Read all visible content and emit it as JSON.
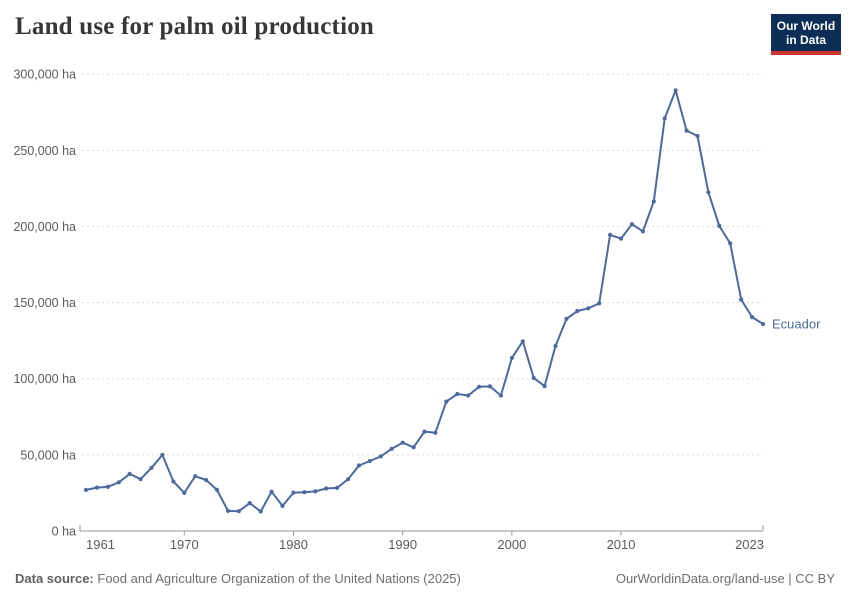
{
  "header": {
    "title": "Land use for palm oil production",
    "logo": {
      "line1": "Our World",
      "line2": "in Data",
      "bg_color": "#0c2d56",
      "bar_color": "#cc342c"
    }
  },
  "chart_data": {
    "type": "line",
    "title": "Land use for palm oil production",
    "unit": "ha",
    "xlabel": "",
    "ylabel": "",
    "xlim": [
      1961,
      2023
    ],
    "ylim": [
      0,
      300000
    ],
    "grid": "horizontal-dashed",
    "legend_position": "end-of-line-label",
    "xticks": {
      "values": [
        1961,
        1970,
        1980,
        1990,
        2000,
        2010,
        2023
      ],
      "labels": [
        "1961",
        "1970",
        "1980",
        "1990",
        "2000",
        "2010",
        "2023"
      ]
    },
    "yticks": {
      "values": [
        0,
        50000,
        100000,
        150000,
        200000,
        250000,
        300000
      ],
      "labels": [
        "0 ha",
        "50,000 ha",
        "100,000 ha",
        "150,000 ha",
        "200,000 ha",
        "250,000 ha",
        "300,000 ha"
      ]
    },
    "series": [
      {
        "name": "Ecuador",
        "color": "#4c6a9f",
        "x": [
          1961,
          1962,
          1963,
          1964,
          1965,
          1966,
          1967,
          1968,
          1969,
          1970,
          1971,
          1972,
          1973,
          1974,
          1975,
          1976,
          1977,
          1978,
          1979,
          1980,
          1981,
          1982,
          1983,
          1984,
          1985,
          1986,
          1987,
          1988,
          1989,
          1990,
          1991,
          1992,
          1993,
          1994,
          1995,
          1996,
          1997,
          1998,
          1999,
          2000,
          2001,
          2002,
          2003,
          2004,
          2005,
          2006,
          2007,
          2008,
          2009,
          2010,
          2011,
          2012,
          2013,
          2014,
          2015,
          2016,
          2017,
          2018,
          2019,
          2020,
          2021,
          2022,
          2023
        ],
        "y": [
          27000,
          28500,
          29000,
          32000,
          37500,
          34000,
          41500,
          50000,
          32500,
          25000,
          36000,
          33500,
          27000,
          13200,
          13000,
          18300,
          12800,
          25800,
          16500,
          25200,
          25500,
          26000,
          27900,
          28300,
          34000,
          43000,
          46000,
          49000,
          54000,
          58000,
          55000,
          65300,
          64500,
          85000,
          90000,
          89000,
          94700,
          95000,
          89000,
          113700,
          124600,
          100600,
          95200,
          121500,
          139400,
          144500,
          146300,
          149500,
          194500,
          192100,
          201500,
          196800,
          216500,
          271000,
          289500,
          263000,
          259500,
          222500,
          200400,
          188900,
          152000,
          140500,
          136000
        ]
      }
    ]
  },
  "footer": {
    "source_label": "Data source:",
    "source_text": "Food and Agriculture Organization of the United Nations (2025)",
    "credit": "OurWorldinData.org/land-use | CC BY"
  }
}
